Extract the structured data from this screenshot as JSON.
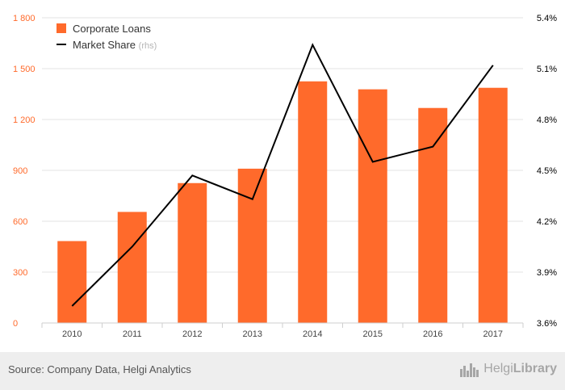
{
  "chart_data": {
    "type": "bar+line",
    "categories": [
      "2010",
      "2011",
      "2012",
      "2013",
      "2014",
      "2015",
      "2016",
      "2017"
    ],
    "series": [
      {
        "name": "Corporate Loans",
        "type": "bar",
        "axis": "left",
        "color": "#ff6a2b",
        "values": [
          483,
          655,
          825,
          910,
          1425,
          1378,
          1268,
          1387
        ]
      },
      {
        "name": "Market Share",
        "name_suffix": "(rhs)",
        "type": "line",
        "axis": "right",
        "color": "#000000",
        "values": [
          3.7,
          4.05,
          4.47,
          4.33,
          5.24,
          4.55,
          4.64,
          5.12
        ]
      }
    ],
    "y_left": {
      "min": 0,
      "max": 1800,
      "ticks": [
        "0",
        "300",
        "600",
        "900",
        "1 200",
        "1 500",
        "1 800"
      ],
      "tick_values": [
        0,
        300,
        600,
        900,
        1200,
        1500,
        1800
      ]
    },
    "y_right": {
      "min": 3.6,
      "max": 5.4,
      "ticks": [
        "3.6%",
        "3.9%",
        "4.2%",
        "4.5%",
        "4.8%",
        "5.1%",
        "5.4%"
      ],
      "tick_values": [
        3.6,
        3.9,
        4.2,
        4.5,
        4.8,
        5.1,
        5.4
      ]
    },
    "grid": true,
    "legend_position": "top-left"
  },
  "footer": {
    "source": "Source: Company Data, Helgi Analytics",
    "brand_light": "Helgi",
    "brand_bold": "Library"
  }
}
